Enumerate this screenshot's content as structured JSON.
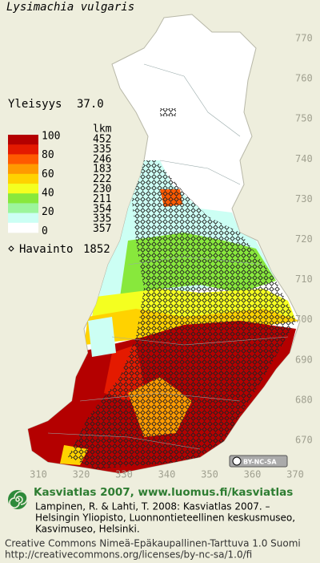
{
  "title": "Lysimachia vulgaris",
  "frequency": {
    "label": "Yleisyys",
    "value": "37.0"
  },
  "legend": {
    "header": "lkm",
    "bounds": [
      100,
      80,
      60,
      40,
      20,
      0
    ],
    "bands": [
      {
        "color": "#b40000",
        "count": 452
      },
      {
        "color": "#e41a00",
        "count": 335
      },
      {
        "color": "#ff5a00",
        "count": 246
      },
      {
        "color": "#ff9a00",
        "count": 183
      },
      {
        "color": "#ffd200",
        "count": 222
      },
      {
        "color": "#f4ff20",
        "count": 230
      },
      {
        "color": "#88e83c",
        "count": 211
      },
      {
        "color": "#9cf59c",
        "count": 354
      },
      {
        "color": "#ccfff4",
        "count": 335
      },
      {
        "color": "#ffffff",
        "count": 357
      }
    ],
    "observations": {
      "label": "Havainto",
      "count": 1852
    }
  },
  "map": {
    "yticks": [
      770,
      760,
      750,
      740,
      730,
      720,
      710,
      700,
      690,
      680,
      670
    ],
    "xticks": [
      310,
      320,
      330,
      340,
      350,
      360,
      370
    ],
    "license_badge": "BY-NC-SA"
  },
  "footer": {
    "brand": "Kasviatlas 2007, www.luomus.fi/kasviatlas",
    "citation": [
      "Lampinen, R. & Lahti, T. 2008: Kasviatlas 2007. –",
      "Helsingin Yliopisto, Luonnontieteellinen keskusmuseo,",
      "Kasvimuseo, Helsinki."
    ],
    "license": [
      "Creative Commons Nimeä-Epäkaupallinen-Tarttuva 1.0 Suomi",
      "http://creativecommons.org/licenses/by-nc-sa/1.0/fi"
    ]
  }
}
